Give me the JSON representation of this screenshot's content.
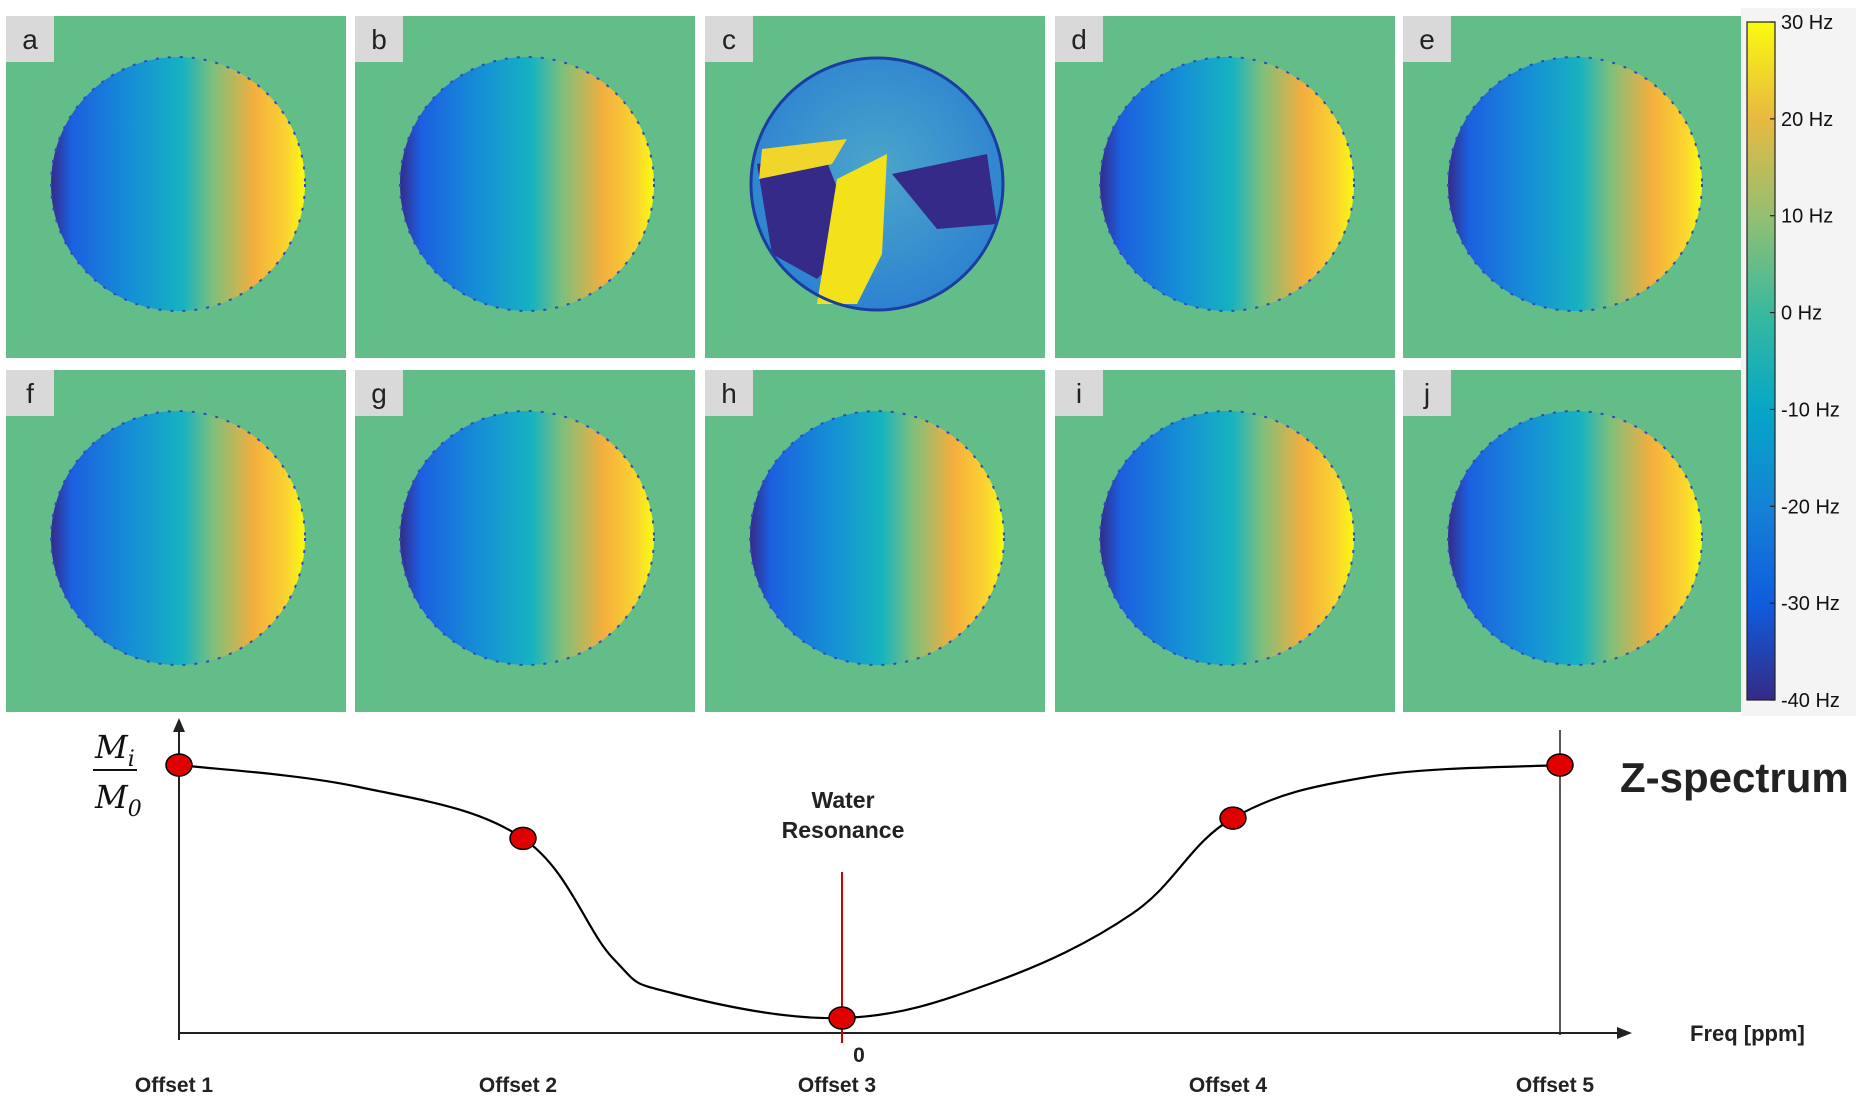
{
  "colors": {
    "background_green": "#63bd88",
    "axis": "#222222",
    "curve": "#000000",
    "marker": "#e00000",
    "water_line": "#cc0000",
    "cold_end": "#352a87",
    "warm_end": "#f9fb0e"
  },
  "panels": [
    {
      "label": "a",
      "map": "smooth"
    },
    {
      "label": "b",
      "map": "smooth"
    },
    {
      "label": "c",
      "map": "noisy"
    },
    {
      "label": "d",
      "map": "smooth"
    },
    {
      "label": "e",
      "map": "smooth"
    },
    {
      "label": "f",
      "map": "smooth"
    },
    {
      "label": "g",
      "map": "smooth"
    },
    {
      "label": "h",
      "map": "smooth"
    },
    {
      "label": "i",
      "map": "smooth"
    },
    {
      "label": "j",
      "map": "smooth"
    }
  ],
  "colorbar": {
    "unit": "Hz",
    "range": [
      -40,
      30
    ],
    "ticks": [
      "30 Hz",
      "20 Hz",
      "10 Hz",
      "0 Hz",
      "-10 Hz",
      "-20 Hz",
      "-30 Hz",
      "-40 Hz"
    ],
    "colormap": "parula"
  },
  "zspectrum": {
    "title": "Z-spectrum",
    "y_label_numerator": "M",
    "y_label_numerator_sub": "i",
    "y_label_denominator": "M",
    "y_label_denominator_sub": "0",
    "x_label": "Freq [ppm]",
    "zero_label": "0",
    "water_label_line1": "Water",
    "water_label_line2": "Resonance",
    "offsets": [
      {
        "label": "Offset 1",
        "y": 1.0
      },
      {
        "label": "Offset 2",
        "y": 0.71
      },
      {
        "label": "Offset 3",
        "y": 0.0
      },
      {
        "label": "Offset 4",
        "y": 0.79
      },
      {
        "label": "Offset 5",
        "y": 1.0
      }
    ]
  }
}
